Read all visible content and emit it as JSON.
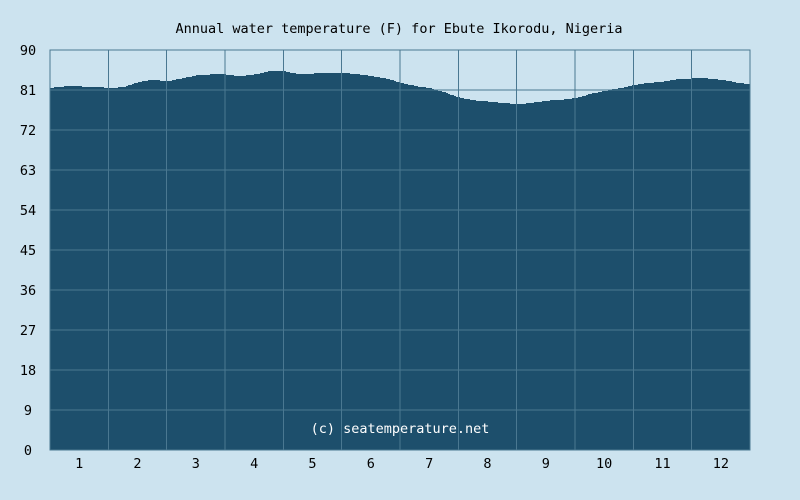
{
  "chart_data": {
    "type": "area",
    "title": "Annual water temperature (F) for Ebute Ikorodu, Nigeria",
    "xlabel": "",
    "ylabel": "",
    "xlim": [
      0.5,
      12.5
    ],
    "ylim": [
      0,
      90
    ],
    "x_ticks": [
      1,
      2,
      3,
      4,
      5,
      6,
      7,
      8,
      9,
      10,
      11,
      12
    ],
    "y_ticks": [
      0,
      9,
      18,
      27,
      36,
      45,
      54,
      63,
      72,
      81,
      90
    ],
    "grid": true,
    "watermark": "(c) seatemperature.net",
    "colors": {
      "background": "#cce3ef",
      "area_fill": "#1d4f6c",
      "plot_background": "#cce3ef",
      "grid": "#4a7891",
      "axis": "#4a7891",
      "text": "#000000",
      "watermark": "#ffffff"
    },
    "series": [
      {
        "x": [
          0.5,
          0.75,
          1.0,
          1.25,
          1.5,
          1.75,
          2.0,
          2.25,
          2.5,
          2.75,
          3.0,
          3.25,
          3.5,
          3.75,
          4.0,
          4.25,
          4.5,
          4.75,
          5.0,
          5.25,
          5.5,
          5.75,
          6.0,
          6.25,
          6.5,
          6.75,
          7.0,
          7.25,
          7.5,
          7.75,
          8.0,
          8.25,
          8.5,
          8.75,
          9.0,
          9.25,
          9.5,
          9.75,
          10.0,
          10.25,
          10.5,
          10.75,
          11.0,
          11.25,
          11.5,
          11.75,
          12.0,
          12.25,
          12.5
        ],
        "values": [
          81.5,
          81.8,
          81.8,
          81.7,
          81.5,
          81.6,
          82.8,
          83.3,
          83.0,
          83.6,
          84.3,
          84.5,
          84.5,
          84.1,
          84.5,
          85.3,
          85.2,
          84.6,
          84.7,
          84.9,
          84.8,
          84.6,
          84.1,
          83.6,
          82.6,
          81.9,
          81.4,
          80.5,
          79.3,
          78.7,
          78.4,
          78.1,
          77.8,
          78.1,
          78.6,
          78.8,
          79.2,
          80.1,
          80.8,
          81.4,
          82.1,
          82.6,
          82.9,
          83.4,
          83.6,
          83.6,
          83.3,
          82.7,
          82.2
        ]
      }
    ]
  }
}
